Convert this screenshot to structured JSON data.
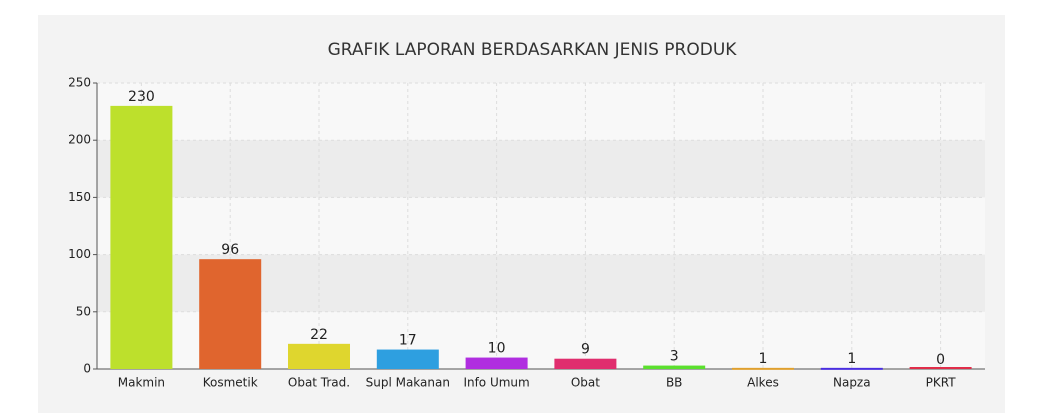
{
  "chart_data": {
    "type": "bar",
    "title": "GRAFIK LAPORAN BERDASARKAN JENIS PRODUK",
    "categories": [
      "Makmin",
      "Kosmetik",
      "Obat Trad.",
      "Supl Makanan",
      "Info Umum",
      "Obat",
      "BB",
      "Alkes",
      "Napza",
      "PKRT"
    ],
    "values": [
      230,
      96,
      22,
      17,
      10,
      9,
      3,
      1,
      1,
      0
    ],
    "colors": [
      "#bde02c",
      "#e0652e",
      "#dfd62e",
      "#2e9fe0",
      "#b02ee0",
      "#e02e6e",
      "#5be02e",
      "#e0a02e",
      "#4a2ee0",
      "#e02e4a"
    ],
    "ylim": [
      0,
      250
    ],
    "yticks": [
      0,
      50,
      100,
      150,
      200,
      250
    ],
    "grid": true
  }
}
